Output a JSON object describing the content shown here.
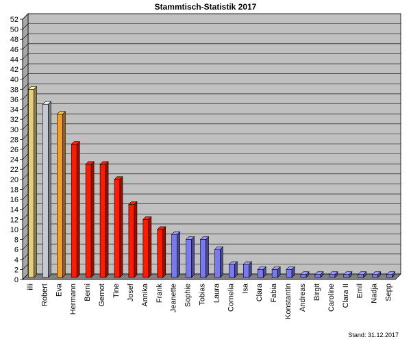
{
  "chart_data": {
    "type": "bar",
    "title": "Stammtisch-Statistik  2017",
    "footer": "Stand: 31.12.2017",
    "categories": [
      "illi",
      "Robert",
      "Eva",
      "Hermann",
      "Berni",
      "Gernot",
      "Tine",
      "Josef",
      "Annika",
      "Frank",
      "Jeanette",
      "Sophie",
      "Tobias",
      "Laura",
      "Cornelia",
      "Isa",
      "Clara",
      "Fabia",
      "Konstantin",
      "Andreas",
      "Birgit",
      "Caroline",
      "Clara II",
      "Emil",
      "Nadja",
      "Sepp"
    ],
    "values": [
      38,
      35,
      33,
      27,
      23,
      23,
      20,
      15,
      12,
      10,
      9,
      8,
      8,
      6,
      3,
      3,
      2,
      2,
      2,
      1,
      1,
      1,
      1,
      1,
      1,
      1
    ],
    "bar_colors": [
      "#e6cf7c",
      "#c4c8d2",
      "#f0a02a",
      "#ff1a00",
      "#ff1a00",
      "#ff1a00",
      "#ff1a00",
      "#ff1a00",
      "#ff1a00",
      "#ff1a00",
      "#7a7af0",
      "#7a7af0",
      "#7a7af0",
      "#7a7af0",
      "#7a7af0",
      "#7a7af0",
      "#7a7af0",
      "#7a7af0",
      "#7a7af0",
      "#7a7af0",
      "#7a7af0",
      "#7a7af0",
      "#7a7af0",
      "#7a7af0",
      "#7a7af0",
      "#7a7af0"
    ],
    "ylim": [
      0,
      52
    ],
    "ytick_step": 2,
    "grid": true,
    "plot_background": "#c0c0c0",
    "floor_color": "#808080"
  }
}
